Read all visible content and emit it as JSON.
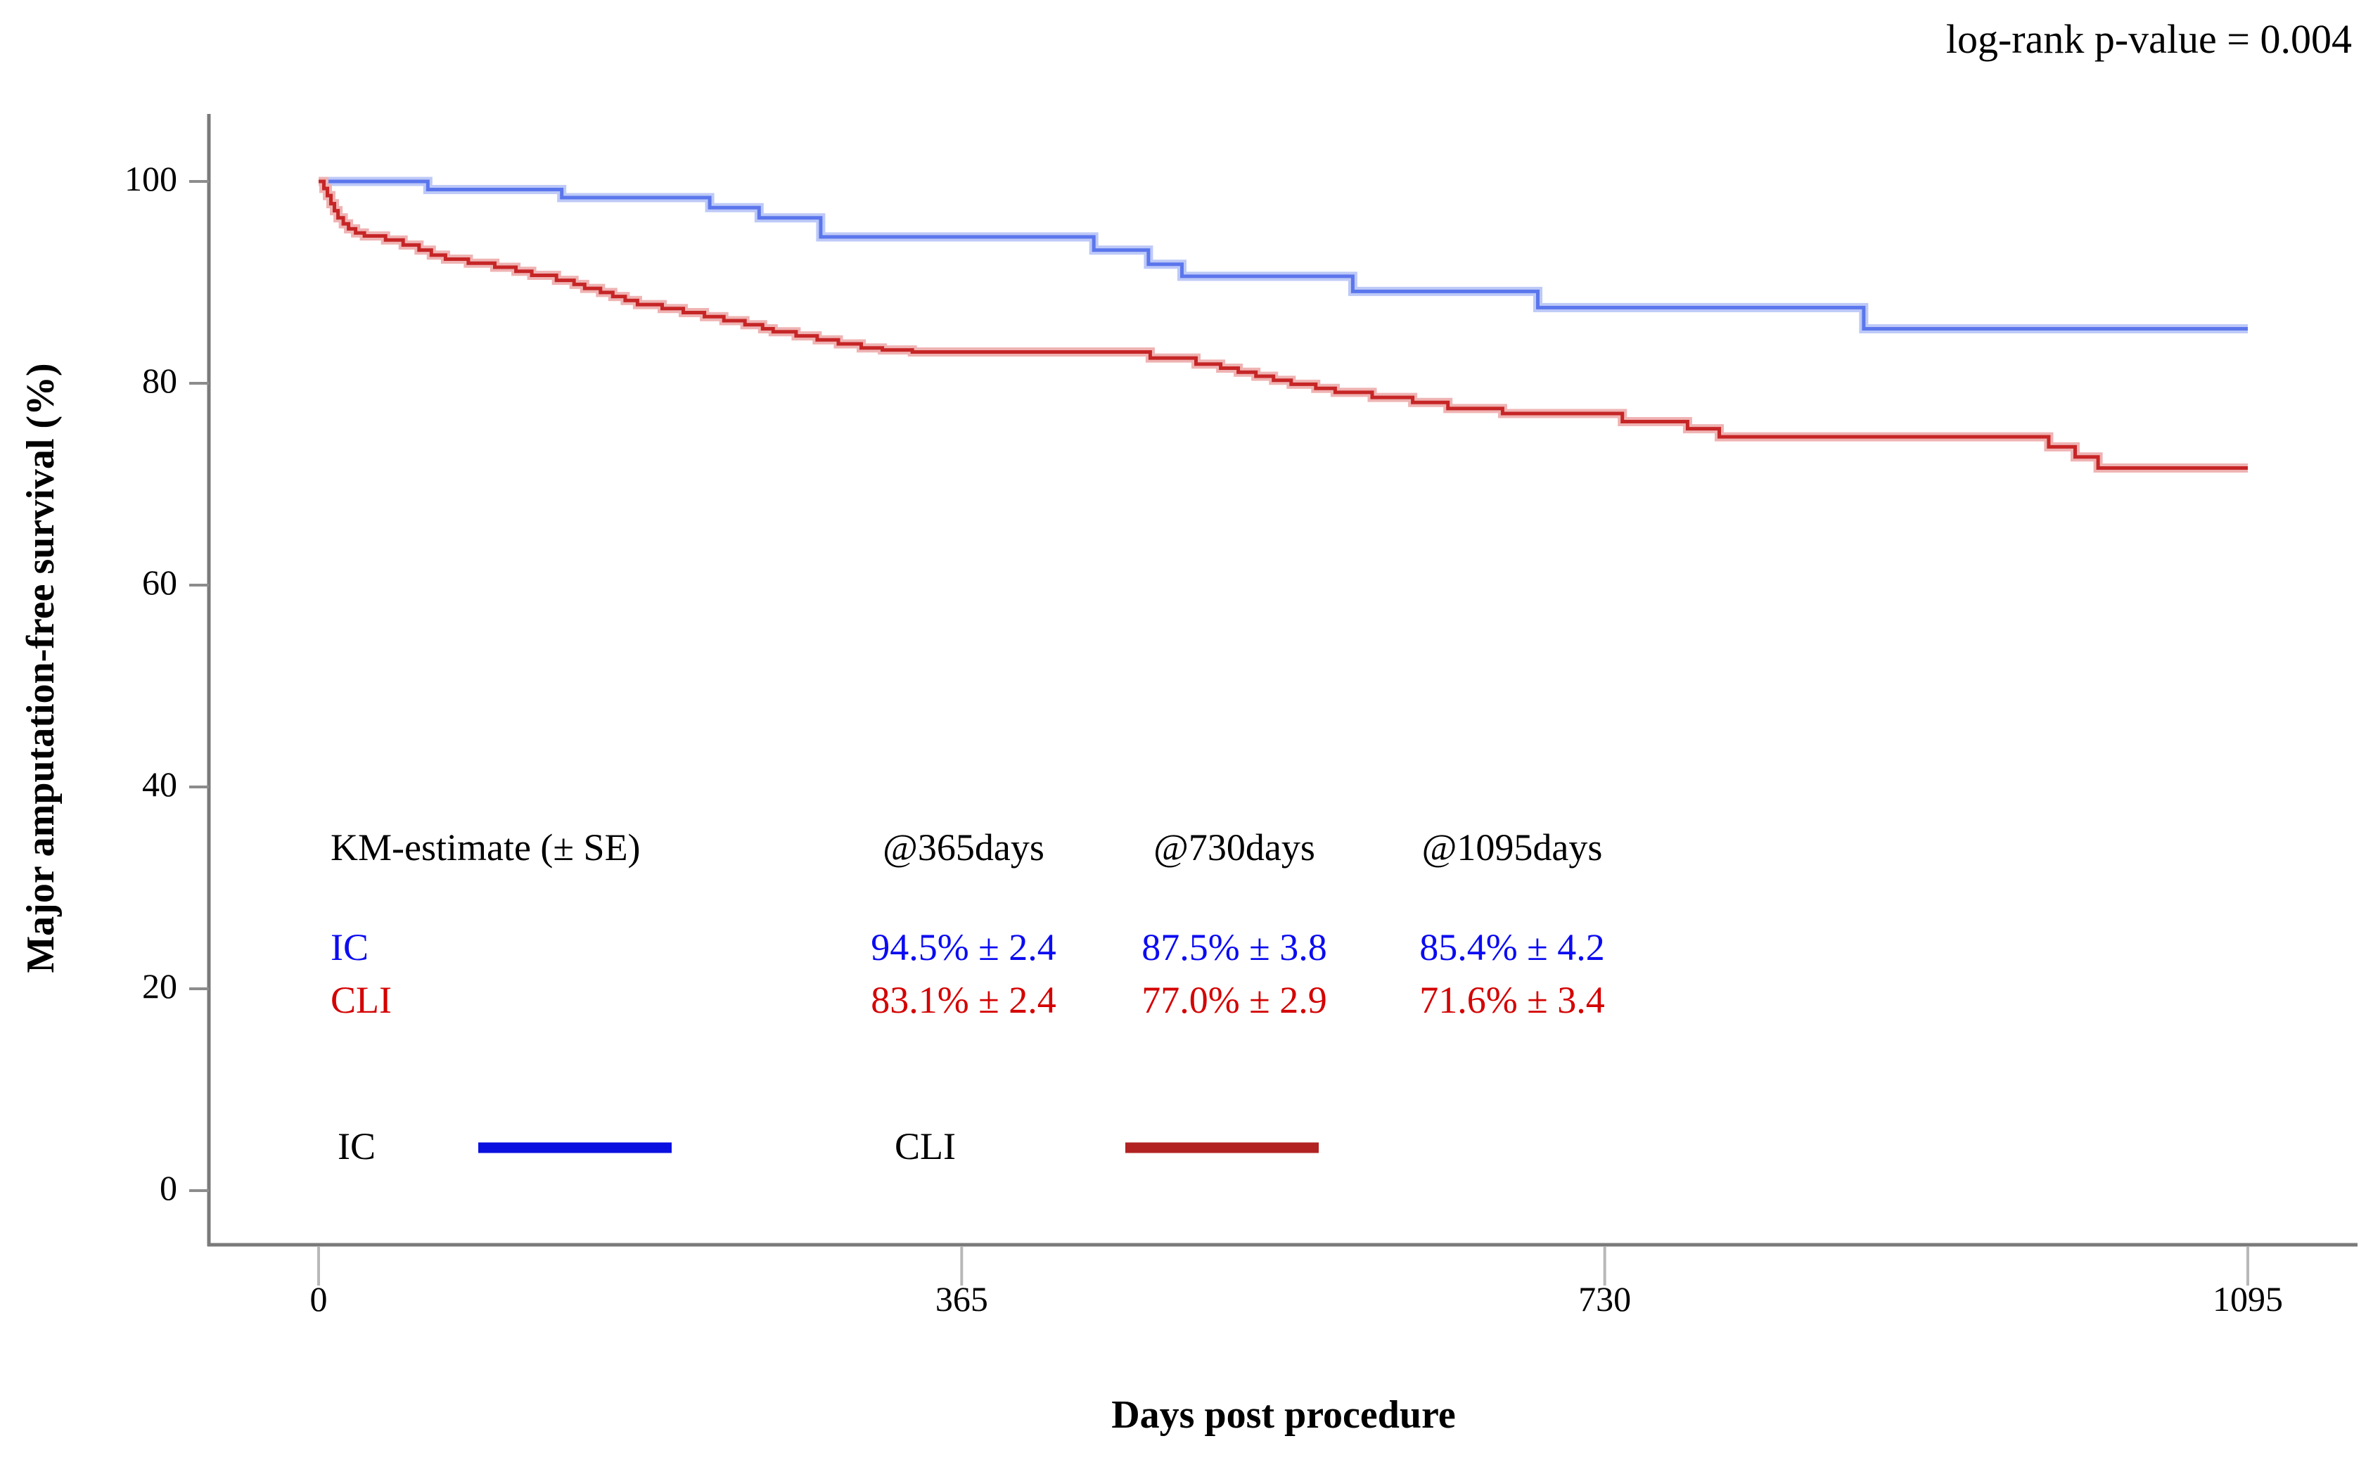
{
  "annotation": {
    "log_rank": "log-rank p-value = 0.004"
  },
  "axes": {
    "x_title": "Days post procedure",
    "y_title": "Major amputation-free survival (%)"
  },
  "km_table": {
    "header_label": "KM-estimate (± SE)",
    "columns": [
      "@365days",
      "@730days",
      "@1095days"
    ],
    "rows": [
      {
        "name": "IC",
        "values": [
          "94.5% ± 2.4",
          "87.5% ± 3.8",
          "85.4% ± 4.2"
        ]
      },
      {
        "name": "CLI",
        "values": [
          "83.1% ± 2.4",
          "77.0% ± 2.9",
          "71.6% ± 3.4"
        ]
      }
    ]
  },
  "legend": {
    "items": [
      {
        "label": "IC",
        "color": "#0a10e0"
      },
      {
        "label": "CLI",
        "color": "#b22222"
      }
    ]
  },
  "colors": {
    "axis_line": "#7a7a7a",
    "y_tick": "#8c8c8c",
    "x_tick": "#b8b8b8",
    "ic_core": "#5b76ec",
    "ic_halo": "#bdc9f7",
    "cli_core": "#c62526",
    "cli_halo": "#efb3b3"
  },
  "chart_data": {
    "type": "line",
    "subtype": "kaplan-meier-step",
    "title": "",
    "xlabel": "Days post procedure",
    "ylabel": "Major amputation-free survival (%)",
    "annotation": "log-rank p-value = 0.004",
    "xlim": [
      0,
      1095
    ],
    "ylim": [
      0,
      100
    ],
    "x_ticks": [
      0,
      365,
      730,
      1095
    ],
    "y_ticks": [
      0,
      20,
      40,
      60,
      80,
      100
    ],
    "grid": false,
    "legend_position": "bottom-inside",
    "km_estimates": {
      "timepoints_days": [
        365,
        730,
        1095
      ],
      "IC": {
        "percent": [
          94.5,
          87.5,
          85.4
        ],
        "se": [
          2.4,
          3.8,
          4.2
        ]
      },
      "CLI": {
        "percent": [
          83.1,
          77.0,
          71.6
        ],
        "se": [
          2.4,
          2.9,
          3.4
        ]
      }
    },
    "log_rank_p_value": 0.004,
    "series": [
      {
        "name": "IC",
        "steps": [
          [
            0,
            100
          ],
          [
            62,
            99.2
          ],
          [
            138,
            98.4
          ],
          [
            222,
            97.4
          ],
          [
            250,
            96.4
          ],
          [
            285,
            94.5
          ],
          [
            440,
            93.2
          ],
          [
            471,
            91.8
          ],
          [
            490,
            90.6
          ],
          [
            587,
            89.1
          ],
          [
            692,
            87.5
          ],
          [
            877,
            85.4
          ]
        ],
        "end_day": 1095
      },
      {
        "name": "CLI",
        "steps": [
          [
            0,
            100
          ],
          [
            3,
            99.3
          ],
          [
            5,
            98.6
          ],
          [
            7,
            97.8
          ],
          [
            9,
            97.1
          ],
          [
            11,
            96.4
          ],
          [
            14,
            95.8
          ],
          [
            17,
            95.3
          ],
          [
            21,
            94.9
          ],
          [
            26,
            94.6
          ],
          [
            38,
            94.2
          ],
          [
            48,
            93.7
          ],
          [
            57,
            93.2
          ],
          [
            64,
            92.7
          ],
          [
            72,
            92.3
          ],
          [
            85,
            91.9
          ],
          [
            100,
            91.5
          ],
          [
            112,
            91.1
          ],
          [
            121,
            90.7
          ],
          [
            135,
            90.2
          ],
          [
            145,
            89.8
          ],
          [
            151,
            89.4
          ],
          [
            160,
            89.0
          ],
          [
            167,
            88.6
          ],
          [
            174,
            88.2
          ],
          [
            181,
            87.8
          ],
          [
            195,
            87.4
          ],
          [
            207,
            87.0
          ],
          [
            219,
            86.6
          ],
          [
            230,
            86.2
          ],
          [
            242,
            85.8
          ],
          [
            252,
            85.4
          ],
          [
            258,
            85.1
          ],
          [
            271,
            84.7
          ],
          [
            283,
            84.3
          ],
          [
            295,
            83.9
          ],
          [
            308,
            83.5
          ],
          [
            320,
            83.3
          ],
          [
            337,
            83.1
          ],
          [
            472,
            82.5
          ],
          [
            498,
            81.9
          ],
          [
            512,
            81.5
          ],
          [
            522,
            81.1
          ],
          [
            532,
            80.7
          ],
          [
            542,
            80.3
          ],
          [
            552,
            79.9
          ],
          [
            566,
            79.5
          ],
          [
            577,
            79.1
          ],
          [
            598,
            78.6
          ],
          [
            621,
            78.1
          ],
          [
            641,
            77.5
          ],
          [
            672,
            77.0
          ],
          [
            740,
            76.2
          ],
          [
            777,
            75.5
          ],
          [
            795,
            74.7
          ],
          [
            982,
            73.7
          ],
          [
            997,
            72.7
          ],
          [
            1010,
            71.6
          ]
        ],
        "end_day": 1095
      }
    ]
  }
}
